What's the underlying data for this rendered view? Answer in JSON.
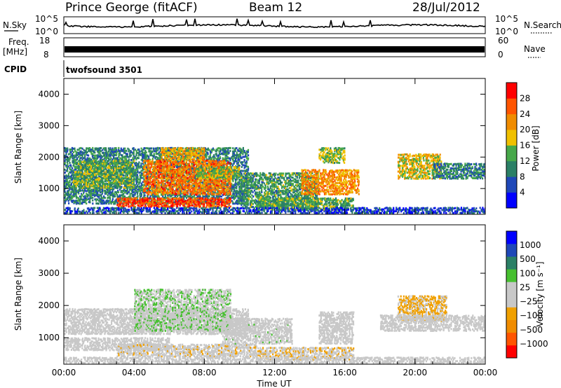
{
  "header": {
    "station": "Prince George (fitACF)",
    "beam": "Beam 12",
    "date": "28/Jul/2012"
  },
  "strips": {
    "nsky_label": "N.Sky",
    "nsky_tick_top": "10^5",
    "nsky_tick_bottom": "10^0",
    "nsearch_label": "N.Search",
    "nsearch_tick_top": "10^5",
    "nsearch_tick_bottom": "10^0",
    "freq_label_1": "Freq.",
    "freq_label_2": "[MHz]",
    "freq_tick_top": "18",
    "freq_tick_bottom": "8",
    "nave_label": "Nave",
    "nave_tick_top": "60",
    "nave_tick_bottom": "0",
    "cpid_label": "CPID",
    "cpid_value": "twofsound 3501"
  },
  "chart_data": [
    {
      "type": "heatmap",
      "name": "power",
      "ylabel": "Slant Range [km]",
      "colorbar_label": "Power [dB]",
      "xlabel": "",
      "x_ticks": [
        "00:00",
        "04:00",
        "08:00",
        "12:00",
        "16:00",
        "20:00",
        "00:00"
      ],
      "x_tick_hours": [
        0,
        4,
        8,
        12,
        16,
        20,
        24
      ],
      "xlim": [
        0,
        24
      ],
      "y_ticks": [
        1000,
        2000,
        3000,
        4000
      ],
      "ylim": [
        180,
        4500
      ],
      "colorbar_ticks": [
        "4",
        "8",
        "12",
        "16",
        "20",
        "24",
        "28"
      ],
      "colorbar_range": [
        0,
        32
      ],
      "colorscale": [
        "#0000ff",
        "#1f48b8",
        "#2b8066",
        "#47a84a",
        "#f0c000",
        "#f08c00",
        "#ff5500",
        "#ff0000"
      ],
      "echo_regions": [
        {
          "t": [
            0.0,
            10.5
          ],
          "r": [
            500,
            2300
          ],
          "p": 10
        },
        {
          "t": [
            0.5,
            4.0
          ],
          "r": [
            1000,
            1900
          ],
          "p": 14
        },
        {
          "t": [
            4.5,
            9.5
          ],
          "r": [
            800,
            1900
          ],
          "p": 24
        },
        {
          "t": [
            3.0,
            9.5
          ],
          "r": [
            400,
            700
          ],
          "p": 27
        },
        {
          "t": [
            5.5,
            8.0
          ],
          "r": [
            1900,
            2300
          ],
          "p": 20
        },
        {
          "t": [
            7.5,
            10.0
          ],
          "r": [
            1300,
            1700
          ],
          "p": 16
        },
        {
          "t": [
            10.0,
            14.5
          ],
          "r": [
            400,
            1500
          ],
          "p": 12
        },
        {
          "t": [
            11.0,
            16.5
          ],
          "r": [
            300,
            700
          ],
          "p": 13
        },
        {
          "t": [
            13.5,
            16.8
          ],
          "r": [
            800,
            1600
          ],
          "p": 22
        },
        {
          "t": [
            14.5,
            16.0
          ],
          "r": [
            1800,
            2300
          ],
          "p": 15
        },
        {
          "t": [
            19.0,
            21.5
          ],
          "r": [
            1300,
            2100
          ],
          "p": 18
        },
        {
          "t": [
            21.0,
            24.0
          ],
          "r": [
            1300,
            1800
          ],
          "p": 10
        },
        {
          "t": [
            0.0,
            24.0
          ],
          "r": [
            200,
            400
          ],
          "p": 6
        }
      ]
    },
    {
      "type": "heatmap",
      "name": "velocity",
      "ylabel": "Slant Range [km]",
      "colorbar_label": "Velocity [m s⁻¹]",
      "xlabel": "Time UT",
      "x_ticks": [
        "00:00",
        "04:00",
        "08:00",
        "12:00",
        "16:00",
        "20:00",
        "00:00"
      ],
      "x_tick_hours": [
        0,
        4,
        8,
        12,
        16,
        20,
        24
      ],
      "xlim": [
        0,
        24
      ],
      "y_ticks": [
        1000,
        2000,
        3000,
        4000
      ],
      "ylim": [
        180,
        4500
      ],
      "colorbar_ticks": [
        "1000",
        "500",
        "100",
        "25",
        "−25",
        "−100",
        "−500",
        "−1000"
      ],
      "colorbar_range": [
        -1300,
        1300
      ],
      "colorscale": [
        "#ff0000",
        "#ff5500",
        "#f08c00",
        "#f0a000",
        "#c8c8c8",
        "#c8c8c8",
        "#47c030",
        "#2b8066",
        "#1f48b8",
        "#0000ff"
      ],
      "echo_regions": [
        {
          "t": [
            0.0,
            10.5
          ],
          "r": [
            1100,
            1900
          ],
          "v": 0
        },
        {
          "t": [
            0.0,
            6.0
          ],
          "r": [
            600,
            1000
          ],
          "v": 0
        },
        {
          "t": [
            4.0,
            9.5
          ],
          "r": [
            1200,
            2500
          ],
          "v": 200
        },
        {
          "t": [
            3.0,
            11.0
          ],
          "r": [
            400,
            800
          ],
          "v": -150
        },
        {
          "t": [
            9.0,
            13.0
          ],
          "r": [
            800,
            1600
          ],
          "v": 120
        },
        {
          "t": [
            11.0,
            16.5
          ],
          "r": [
            300,
            700
          ],
          "v": -200
        },
        {
          "t": [
            14.5,
            16.5
          ],
          "r": [
            800,
            1800
          ],
          "v": 0
        },
        {
          "t": [
            19.0,
            21.8
          ],
          "r": [
            1500,
            2300
          ],
          "v": -300
        },
        {
          "t": [
            18.0,
            24.0
          ],
          "r": [
            1200,
            1700
          ],
          "v": 0
        },
        {
          "t": [
            0.0,
            24.0
          ],
          "r": [
            200,
            400
          ],
          "v": 0
        }
      ]
    }
  ]
}
